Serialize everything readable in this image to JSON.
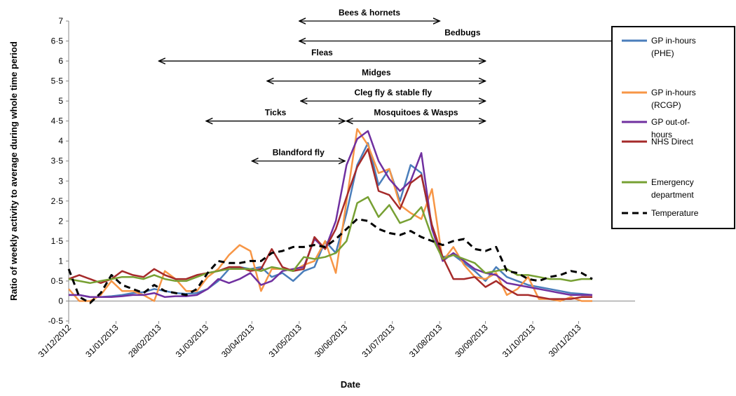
{
  "chart_data": {
    "type": "line",
    "xlabel": "Date",
    "ylabel": "Ratio of weekly activity to average during whole time period",
    "ylim": [
      -0.5,
      7
    ],
    "yticks": [
      "-0·5",
      "0",
      "0·5",
      "1",
      "1·5",
      "2",
      "2·5",
      "3",
      "3·5",
      "4",
      "4·5",
      "5",
      "5·5",
      "6",
      "6·5",
      "7"
    ],
    "xtick_labels": [
      "31/12/2012",
      "31/01/2013",
      "28/02/2013",
      "31/03/2013",
      "30/04/2013",
      "31/05/2013",
      "30/06/2013",
      "31/07/2013",
      "31/08/2013",
      "30/09/2013",
      "31/10/2013",
      "30/11/2013"
    ],
    "x_weeks_start": "2012-12-31",
    "grid": false,
    "legend_position": "right",
    "series": [
      {
        "name": "GP in-hours (PHE)",
        "color": "#4a7ebb",
        "values": [
          0.15,
          0.15,
          0.1,
          0.1,
          0.12,
          0.15,
          0.2,
          0.22,
          0.3,
          0.25,
          0.2,
          0.18,
          0.2,
          0.3,
          0.5,
          0.8,
          0.85,
          0.8,
          0.85,
          0.6,
          0.7,
          0.5,
          0.75,
          0.85,
          1.5,
          1.2,
          2.2,
          3.4,
          3.95,
          2.9,
          3.3,
          2.5,
          3.4,
          3.2,
          1.8,
          1.1,
          1.15,
          0.95,
          0.75,
          0.5,
          0.85,
          0.6,
          0.5,
          0.4,
          0.35,
          0.3,
          0.25,
          0.2,
          0.18,
          0.15
        ]
      },
      {
        "name": "GP in-hours (RCGP)",
        "color": "#f79646",
        "values": [
          0.3,
          0.0,
          0.0,
          0.15,
          0.5,
          0.25,
          0.25,
          0.15,
          0.0,
          0.75,
          0.55,
          0.25,
          0.25,
          0.6,
          0.8,
          1.15,
          1.4,
          1.25,
          0.25,
          0.8,
          0.8,
          0.75,
          0.9,
          1.0,
          1.5,
          0.7,
          2.5,
          4.3,
          3.9,
          3.2,
          3.3,
          2.4,
          2.2,
          2.05,
          2.8,
          1.0,
          1.35,
          0.9,
          0.6,
          0.55,
          0.7,
          0.15,
          0.3,
          0.6,
          0.05,
          0.05,
          0.0,
          0.1,
          0.0,
          0.0
        ]
      },
      {
        "name": "GP out-of-hours",
        "color": "#7030a0",
        "values": [
          0.15,
          0.15,
          0.1,
          0.1,
          0.1,
          0.12,
          0.15,
          0.15,
          0.2,
          0.1,
          0.12,
          0.12,
          0.15,
          0.3,
          0.55,
          0.45,
          0.55,
          0.7,
          0.4,
          0.5,
          0.75,
          0.8,
          0.85,
          1.55,
          1.3,
          2.0,
          3.4,
          4.05,
          4.25,
          3.5,
          3.05,
          2.75,
          3.0,
          3.7,
          1.8,
          1.0,
          1.2,
          1.0,
          0.8,
          0.7,
          0.65,
          0.45,
          0.4,
          0.35,
          0.3,
          0.25,
          0.2,
          0.15,
          0.15,
          0.15
        ]
      },
      {
        "name": "NHS Direct",
        "color": "#a52a2a",
        "values": [
          0.55,
          0.65,
          0.55,
          0.45,
          0.55,
          0.75,
          0.65,
          0.6,
          0.8,
          0.65,
          0.55,
          0.55,
          0.65,
          0.7,
          0.75,
          0.85,
          0.85,
          0.75,
          0.8,
          1.3,
          0.85,
          0.75,
          0.8,
          1.6,
          1.3,
          1.8,
          2.6,
          3.35,
          3.8,
          2.75,
          2.65,
          2.3,
          2.95,
          3.15,
          1.9,
          1.1,
          0.55,
          0.55,
          0.6,
          0.35,
          0.5,
          0.3,
          0.15,
          0.15,
          0.1,
          0.05,
          0.05,
          0.05,
          0.1,
          0.1
        ]
      },
      {
        "name": "Emergency department",
        "color": "#77a033",
        "values": [
          0.55,
          0.5,
          0.45,
          0.5,
          0.55,
          0.6,
          0.6,
          0.55,
          0.65,
          0.55,
          0.5,
          0.5,
          0.6,
          0.7,
          0.75,
          0.8,
          0.8,
          0.8,
          0.75,
          0.85,
          0.8,
          0.75,
          1.1,
          1.05,
          1.1,
          1.2,
          1.5,
          2.45,
          2.6,
          2.1,
          2.4,
          1.95,
          2.05,
          2.35,
          1.6,
          1.05,
          1.15,
          1.05,
          0.95,
          0.7,
          0.75,
          0.8,
          0.65,
          0.65,
          0.6,
          0.55,
          0.55,
          0.5,
          0.55,
          0.55
        ]
      },
      {
        "name": "Temperature",
        "color": "#000000",
        "dashed": true,
        "values": [
          0.8,
          0.1,
          -0.05,
          0.2,
          0.65,
          0.4,
          0.3,
          0.2,
          0.4,
          0.25,
          0.2,
          0.15,
          0.3,
          0.7,
          1.0,
          0.95,
          0.95,
          1.0,
          1.0,
          1.2,
          1.25,
          1.35,
          1.35,
          1.4,
          1.35,
          1.55,
          1.8,
          2.05,
          2.0,
          1.8,
          1.7,
          1.65,
          1.75,
          1.6,
          1.5,
          1.4,
          1.5,
          1.55,
          1.3,
          1.25,
          1.35,
          0.75,
          0.7,
          0.55,
          0.5,
          0.6,
          0.65,
          0.75,
          0.7,
          0.55
        ]
      }
    ],
    "annotations": [
      {
        "label": "Bees & hornets",
        "x_start": "2013-05-31",
        "x_end": "2013-08-31",
        "y": 7.0,
        "arrow_left": true,
        "arrow_right": true
      },
      {
        "label": "Bedbugs",
        "x_start": "2013-05-31",
        "x_end": "2013-12-31",
        "y": 6.5,
        "arrow_left": true,
        "arrow_right": true
      },
      {
        "label": "Fleas",
        "x_start": "2013-02-28",
        "x_end": "2013-09-30",
        "y": 6.0,
        "arrow_left": true,
        "arrow_right": true
      },
      {
        "label": "Midges",
        "x_start": "2013-05-10",
        "x_end": "2013-09-30",
        "y": 5.5,
        "arrow_left": true,
        "arrow_right": true
      },
      {
        "label": "Cleg fly  & stable fly",
        "x_start": "2013-06-01",
        "x_end": "2013-09-30",
        "y": 5.0,
        "arrow_left": true,
        "arrow_right": true
      },
      {
        "label": "Ticks",
        "x_start": "2013-03-31",
        "x_end": "2013-06-30",
        "y": 4.5,
        "arrow_left": true,
        "arrow_right": true
      },
      {
        "label": "Mosquitoes   & Wasps",
        "x_start": "2013-07-01",
        "x_end": "2013-09-30",
        "y": 4.5,
        "arrow_left": true,
        "arrow_right": true
      },
      {
        "label": "Blandford fly",
        "x_start": "2013-04-30",
        "x_end": "2013-06-30",
        "y": 3.5,
        "arrow_left": true,
        "arrow_right": true
      }
    ],
    "legend": [
      {
        "label": "GP in-hours\n(PHE)",
        "series": 0
      },
      {
        "label": "GP in-hours\n(RCGP)",
        "series": 1
      },
      {
        "label": "GP out-of-\nhours",
        "series": 2
      },
      {
        "label": "NHS Direct",
        "series": 3
      },
      {
        "label": "Emergency\ndepartment",
        "series": 4
      },
      {
        "label": "Temperature",
        "series": 5
      }
    ]
  }
}
